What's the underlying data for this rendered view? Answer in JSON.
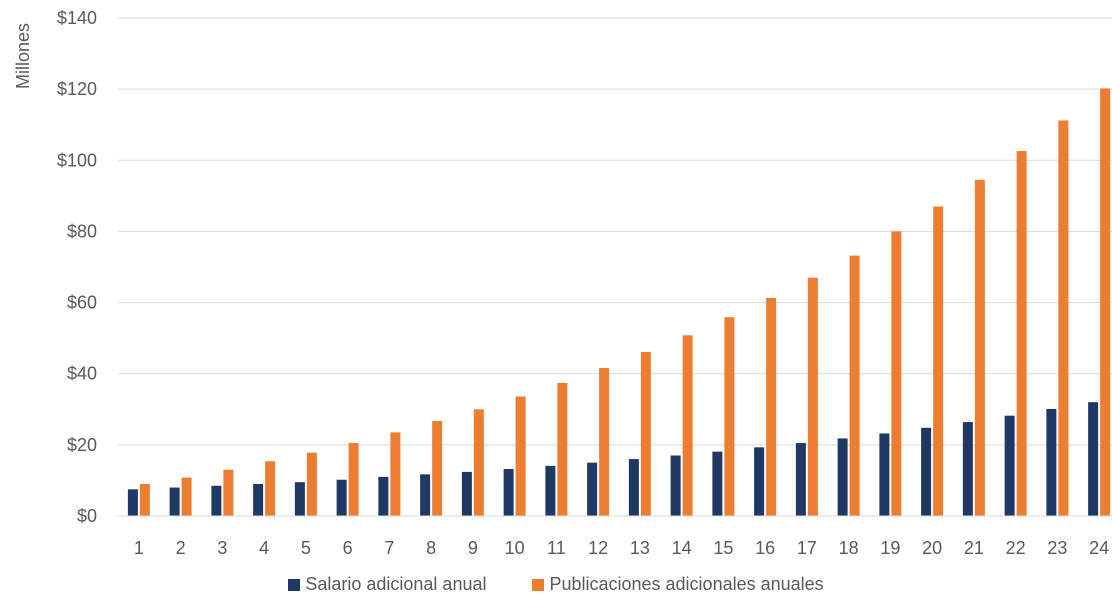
{
  "chart_data": {
    "type": "bar",
    "title": "",
    "xlabel": "",
    "ylabel": "Millones",
    "ylim": [
      0,
      140
    ],
    "yticks": [
      "$0",
      "$20",
      "$40",
      "$60",
      "$80",
      "$100",
      "$120",
      "$140"
    ],
    "grid": true,
    "legend_position": "bottom",
    "categories": [
      "1",
      "2",
      "3",
      "4",
      "5",
      "6",
      "7",
      "8",
      "9",
      "10",
      "11",
      "12",
      "13",
      "14",
      "15",
      "16",
      "17",
      "18",
      "19",
      "20",
      "21",
      "22",
      "23",
      "24"
    ],
    "series": [
      {
        "name": "Salario adicional anual",
        "color": "#203864",
        "values": [
          7.5,
          8,
          8.5,
          9,
          9.5,
          10.2,
          11,
          11.7,
          12.4,
          13.2,
          14.1,
          15,
          16,
          17,
          18.1,
          19.3,
          20.5,
          21.8,
          23.2,
          24.8,
          26.4,
          28.2,
          30.1,
          32
        ]
      },
      {
        "name": "Publicaciones adicionales anuales",
        "color": "#ED7D31",
        "values": [
          9,
          10.8,
          13,
          15.4,
          17.8,
          20.5,
          23.5,
          26.7,
          30,
          33.6,
          37.4,
          41.6,
          46.1,
          50.8,
          55.9,
          61.3,
          67,
          73.2,
          80,
          87,
          94.5,
          102.6,
          111.2,
          120.2
        ]
      }
    ]
  }
}
